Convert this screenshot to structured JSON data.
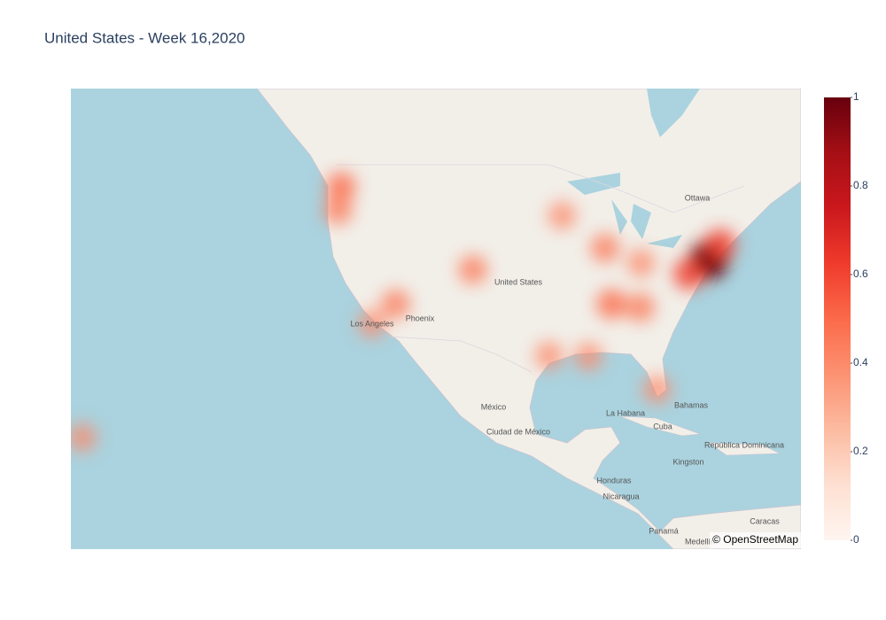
{
  "chart_data": {
    "type": "densitymap",
    "title": "United States - Week 16,2020",
    "lonlim": [
      -157.8,
      -61.9
    ],
    "latlim": [
      6.57,
      55.6
    ],
    "lat": [
      47.6,
      45.5,
      34.05,
      36.17,
      39.74,
      44.98,
      41.88,
      40.4,
      36.16,
      35.8,
      30.5,
      30.4,
      26.6,
      40.7,
      39.3,
      42.2,
      20.8
    ],
    "lon": [
      -122.3,
      -122.7,
      -118.24,
      -115.14,
      -104.99,
      -93.27,
      -87.63,
      -82.9,
      -86.78,
      -83.0,
      -95.0,
      -89.8,
      -80.8,
      -74.0,
      -76.6,
      -72.5,
      -156.3
    ],
    "z": [
      0.5,
      0.45,
      0.4,
      0.45,
      0.45,
      0.4,
      0.45,
      0.4,
      0.5,
      0.45,
      0.4,
      0.4,
      0.4,
      1.0,
      0.6,
      0.6,
      0.4
    ],
    "colorscale": [
      "#fff5f0",
      "#fee0d2",
      "#fcbba1",
      "#fc9272",
      "#fb6a4a",
      "#ef3b2c",
      "#cb181d",
      "#a50f15",
      "#67000d"
    ],
    "zlim": [
      0,
      1
    ],
    "zticks": [
      0,
      0.2,
      0.4,
      0.6,
      0.8,
      1
    ],
    "attribution": "© OpenStreetMap",
    "place_labels": [
      "Ottawa",
      "United States",
      "Phoenix",
      "Los Angeles",
      "México",
      "Ciudad de México",
      "La Habana",
      "Cuba",
      "Bahamas",
      "República Dominicana",
      "Kingston",
      "Honduras",
      "Nicaragua",
      "Panamá",
      "Caracas",
      "Medellín"
    ]
  }
}
